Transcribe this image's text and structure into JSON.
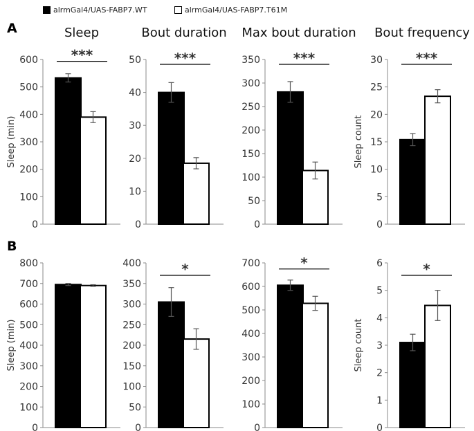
{
  "legend": [
    {
      "label": "alrmGal4/UAS-FABP7.WT",
      "color": "#000000"
    },
    {
      "label": "alrmGal4/UAS-FABP7.T61M",
      "color": "#ffffff"
    }
  ],
  "panels": {
    "a": "A",
    "b": "B"
  },
  "column_titles": [
    "Sleep",
    "Bout duration",
    "Max bout duration",
    "Bout frequency"
  ],
  "chart_data": [
    {
      "type": "bar",
      "panel": "A",
      "title": "Sleep",
      "ylabel": "Sleep (min)",
      "ylim": [
        0,
        600
      ],
      "yticks": [
        0,
        100,
        200,
        300,
        400,
        500,
        600
      ],
      "values": [
        533,
        390
      ],
      "errors": [
        15,
        20
      ],
      "significance": "***"
    },
    {
      "type": "bar",
      "panel": "A",
      "title": "Bout duration",
      "ylabel": "",
      "ylim": [
        0,
        50
      ],
      "yticks": [
        0,
        10,
        20,
        30,
        40,
        50
      ],
      "values": [
        40,
        18.5
      ],
      "errors": [
        3,
        1.7
      ],
      "significance": "***"
    },
    {
      "type": "bar",
      "panel": "A",
      "title": "Max bout duration",
      "ylabel": "",
      "ylim": [
        0,
        350
      ],
      "yticks": [
        0,
        50,
        100,
        150,
        200,
        250,
        300,
        350
      ],
      "values": [
        281,
        114
      ],
      "errors": [
        22,
        18
      ],
      "significance": "***"
    },
    {
      "type": "bar",
      "panel": "A",
      "title": "Bout frequency",
      "ylabel": "Sleep count",
      "ylim": [
        0,
        30
      ],
      "yticks": [
        0,
        5,
        10,
        15,
        20,
        25,
        30
      ],
      "values": [
        15.4,
        23.3
      ],
      "errors": [
        1.1,
        1.2
      ],
      "significance": "***"
    },
    {
      "type": "bar",
      "panel": "B",
      "ylabel": "Sleep (min)",
      "ylim": [
        0,
        800
      ],
      "yticks": [
        0,
        100,
        200,
        300,
        400,
        500,
        600,
        700,
        800
      ],
      "values": [
        695,
        690
      ],
      "errors": [
        5,
        4
      ],
      "significance": ""
    },
    {
      "type": "bar",
      "panel": "B",
      "ylabel": "",
      "ylim": [
        0,
        400
      ],
      "yticks": [
        0,
        50,
        100,
        150,
        200,
        250,
        300,
        350,
        400
      ],
      "values": [
        305,
        215
      ],
      "errors": [
        35,
        25
      ],
      "significance": "*"
    },
    {
      "type": "bar",
      "panel": "B",
      "ylabel": "",
      "ylim": [
        0,
        700
      ],
      "yticks": [
        0,
        100,
        200,
        300,
        400,
        500,
        600,
        700
      ],
      "values": [
        605,
        528
      ],
      "errors": [
        22,
        30
      ],
      "significance": "*"
    },
    {
      "type": "bar",
      "panel": "B",
      "ylabel": "Sleep count",
      "ylim": [
        0,
        6
      ],
      "yticks": [
        0,
        1,
        2,
        3,
        4,
        5,
        6
      ],
      "values": [
        3.1,
        4.45
      ],
      "errors": [
        0.3,
        0.55
      ],
      "significance": "*"
    }
  ]
}
